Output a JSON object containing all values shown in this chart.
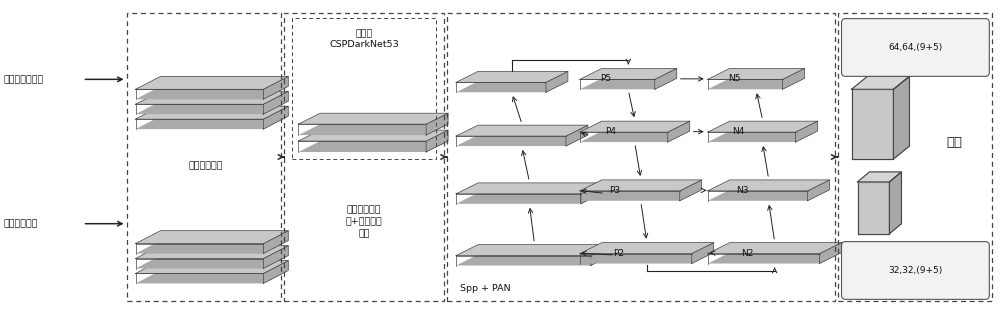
{
  "bg_color": "#ffffff",
  "fig_width": 10.0,
  "fig_height": 3.14,
  "dpi": 100,
  "face_color": "#c8c8c8",
  "edge_color": "#444444",
  "side_color": "#aaaaaa",
  "top_color": "#d8d8d8",
  "arrow_color": "#222222",
  "text_color": "#111111",
  "input_labels": [
    "输入可见光图像",
    "输入红外图像"
  ],
  "shallow_label": "浅层特征提取",
  "csp_label": "改进的\nCSPDarkNet53",
  "balance_label": "平衡多模态融\n合+深层特征\n提取",
  "spp_label": "Spp + PAN",
  "predict_label": "预测",
  "output_labels": [
    "64,64,(9+5)",
    "32,32,(9+5)"
  ]
}
